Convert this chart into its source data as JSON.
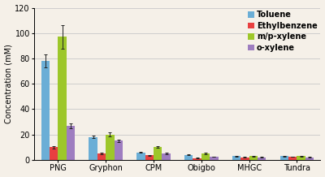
{
  "categories": [
    "PNG",
    "Gryphon",
    "CPM",
    "Obigbo",
    "MHGC",
    "Tundra"
  ],
  "series": {
    "Toluene": [
      78,
      18,
      6,
      4,
      3,
      3
    ],
    "Ethylbenzene": [
      10,
      5,
      3.5,
      1.5,
      2,
      2.5
    ],
    "m/p-xylene": [
      97,
      20,
      10,
      5,
      3,
      3
    ],
    "o-xylene": [
      27,
      15,
      5,
      2.5,
      2,
      2
    ]
  },
  "errors": {
    "Toluene": [
      5,
      1,
      0.5,
      0.3,
      0.3,
      0.2
    ],
    "Ethylbenzene": [
      0.8,
      0.5,
      0.3,
      0.2,
      0.2,
      0.1
    ],
    "m/p-xylene": [
      9,
      1.5,
      0.7,
      0.4,
      0.3,
      0.3
    ],
    "o-xylene": [
      2.0,
      0.8,
      0.4,
      0.3,
      0.2,
      0.2
    ]
  },
  "colors": {
    "Toluene": "#6baed6",
    "Ethylbenzene": "#e84040",
    "m/p-xylene": "#9dc72a",
    "o-xylene": "#9e7dc0"
  },
  "ylabel": "Concentration (mM)",
  "ylim": [
    0,
    120
  ],
  "yticks": [
    0,
    20,
    40,
    60,
    80,
    100,
    120
  ],
  "legend_order": [
    "Toluene",
    "Ethylbenzene",
    "m/p-xylene",
    "o-xylene"
  ],
  "bar_width": 0.15,
  "background_color": "#f5f0e8",
  "grid_color": "#c8c8c8",
  "error_color": "#222222",
  "legend_fontsize": 7,
  "axis_fontsize": 7,
  "tick_fontsize": 7
}
